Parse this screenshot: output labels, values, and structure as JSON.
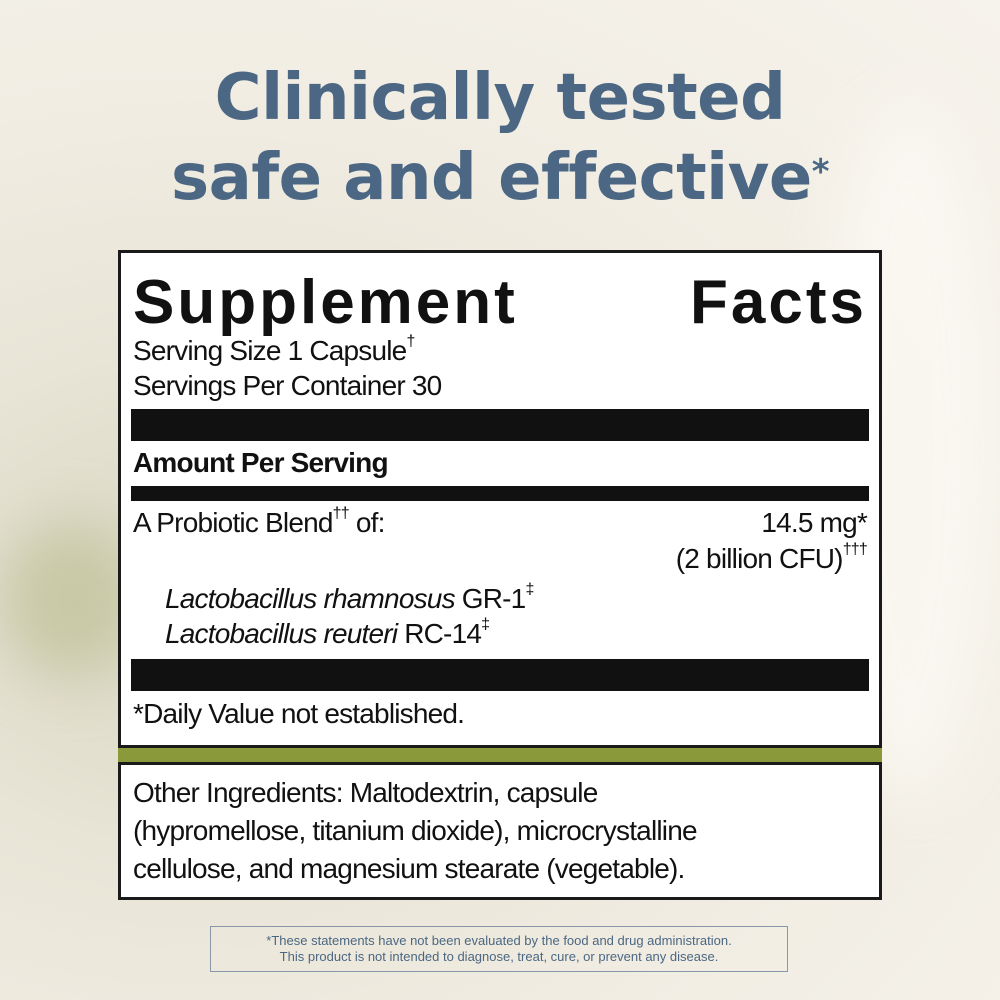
{
  "headline": {
    "line1": "Clinically tested",
    "line2": "safe and effective",
    "mark": "*"
  },
  "label": {
    "title_left": "Supplement",
    "title_right": "Facts",
    "serving_size": "Serving Size 1 Capsule",
    "serving_size_mark": "†",
    "servings_per_container": "Servings Per Container 30",
    "amount_header": "Amount Per Serving",
    "blend_name": "A Probiotic Blend",
    "blend_mark": "††",
    "blend_of": " of:",
    "blend_amount": "14.5 mg*",
    "blend_cfu": "(2 billion CFU)",
    "blend_cfu_mark": "†††",
    "strains": [
      {
        "genus_species": "Lactobacillus rhamnosus",
        "strain": " GR-1",
        "mark": "‡"
      },
      {
        "genus_species": "Lactobacillus reuteri",
        "strain": " RC-14",
        "mark": "‡"
      }
    ],
    "daily_value_note": "*Daily Value not established.",
    "other_ingredients": [
      "Other Ingredients: Maltodextrin, capsule",
      "(hypromellose, titanium dioxide), microcrystalline",
      "cellulose, and magnesium stearate (vegetable)."
    ]
  },
  "disclaimer": {
    "line1": "*These statements have not been evaluated by the food and drug administration.",
    "line2": "This product is not intended to diagnose, treat, cure, or prevent any disease."
  },
  "colors": {
    "headline": "#4b6783",
    "accent_band": "#8a9a3a"
  }
}
